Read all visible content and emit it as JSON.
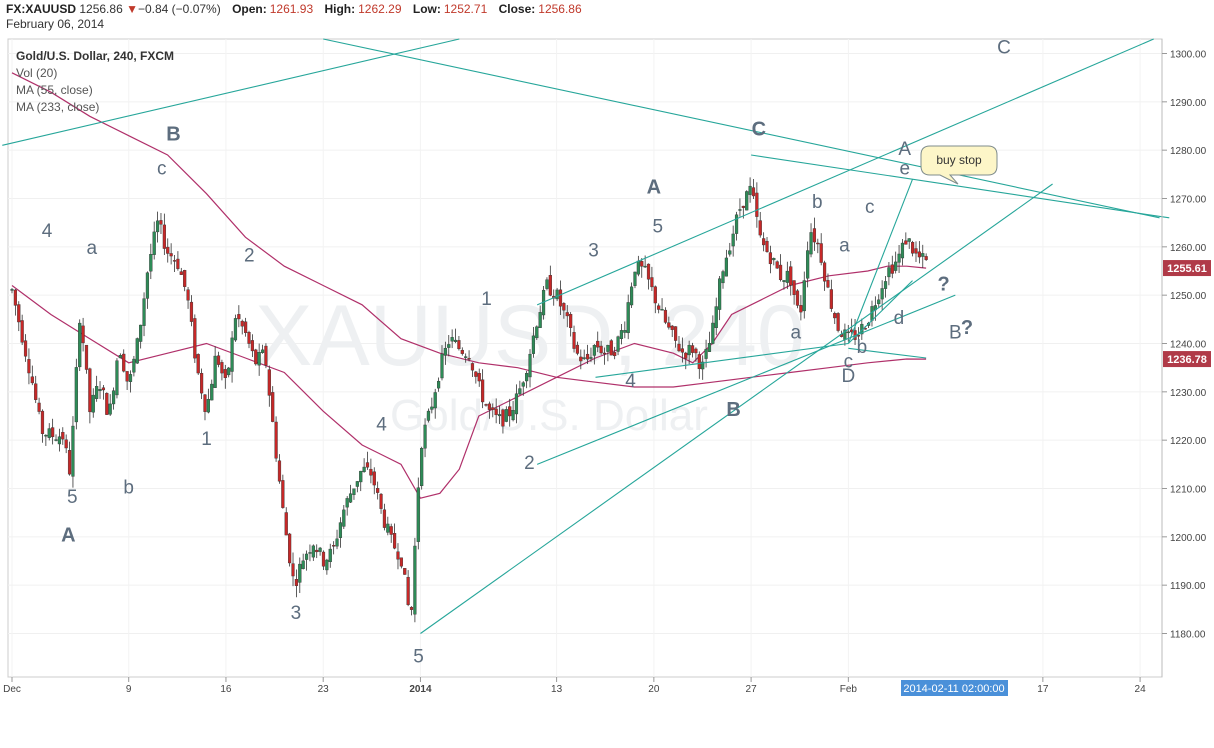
{
  "header": {
    "symbol": "FX:XAUUSD",
    "last": "1256.86",
    "change_arrow": "▼",
    "change": "−0.84 (−0.07%)",
    "open_label": "Open:",
    "open": "1261.93",
    "high_label": "High:",
    "high": "1262.29",
    "low_label": "Low:",
    "low": "1252.71",
    "close_label": "Close:",
    "close": "1256.86",
    "date": "February 06, 2014"
  },
  "legend": {
    "title": "Gold/U.S. Dollar, 240, FXCM",
    "vol": "Vol (20)",
    "ma55": "MA (55, close)",
    "ma233": "MA (233, close)"
  },
  "watermark": {
    "line1": "XAUUSD, 240",
    "line2": "Gold/U.S. Dollar"
  },
  "colors": {
    "up": "#2e8b57",
    "down": "#c62828",
    "ma": "#b0306a",
    "trend": "#26a69a",
    "label": "#5d6d7e",
    "price_tag": "#b03a48"
  },
  "callout": {
    "text": "buy stop"
  },
  "chart_data": {
    "type": "candlestick",
    "title": "Gold/U.S. Dollar, 240, FXCM",
    "y_ticks": [
      1180,
      1190,
      1200,
      1210,
      1220,
      1230,
      1240,
      1250,
      1260,
      1270,
      1280,
      1290,
      1300
    ],
    "y_tick_labels": [
      "1180.00",
      "1190.00",
      "1200.00",
      "1210.00",
      "1220.00",
      "1230.00",
      "1240.00",
      "1250.00",
      "1260.00",
      "1270.00",
      "1280.00",
      "1290.00",
      "1300.00"
    ],
    "ylim": [
      1171,
      1303
    ],
    "x_ticks": [
      {
        "label": "Dec",
        "t": 0
      },
      {
        "label": "9",
        "t": 6
      },
      {
        "label": "16",
        "t": 11
      },
      {
        "label": "23",
        "t": 16
      },
      {
        "label": "2014",
        "t": 21
      },
      {
        "label": "13",
        "t": 28
      },
      {
        "label": "20",
        "t": 33
      },
      {
        "label": "27",
        "t": 38
      },
      {
        "label": "Feb",
        "t": 43
      },
      {
        "label": "17",
        "t": 53
      },
      {
        "label": "24",
        "t": 58
      }
    ],
    "cursor_date": "2014-02-11 02:00:00",
    "price_tags": [
      {
        "value": 1255.61,
        "label": "1255.61"
      },
      {
        "value": 1236.78,
        "label": "1236.78"
      }
    ],
    "close_path": [
      [
        0,
        1251
      ],
      [
        1,
        1233
      ],
      [
        1.5,
        1222
      ],
      [
        2,
        1221
      ],
      [
        2.6,
        1221
      ],
      [
        3,
        1213
      ],
      [
        3.5,
        1247
      ],
      [
        4,
        1226
      ],
      [
        4.5,
        1232
      ],
      [
        5,
        1225
      ],
      [
        5.5,
        1240
      ],
      [
        6,
        1231
      ],
      [
        6.5,
        1241
      ],
      [
        7,
        1256
      ],
      [
        7.5,
        1265
      ],
      [
        8,
        1259
      ],
      [
        8.5,
        1257
      ],
      [
        9,
        1250
      ],
      [
        9.5,
        1235
      ],
      [
        10,
        1226
      ],
      [
        10.5,
        1238
      ],
      [
        11,
        1231
      ],
      [
        11.5,
        1246
      ],
      [
        12,
        1242
      ],
      [
        12.5,
        1236
      ],
      [
        13,
        1238
      ],
      [
        13.5,
        1220
      ],
      [
        14,
        1203
      ],
      [
        14.5,
        1190
      ],
      [
        15,
        1196
      ],
      [
        15.5,
        1199
      ],
      [
        16,
        1195
      ],
      [
        16.5,
        1197
      ],
      [
        17,
        1205
      ],
      [
        17.5,
        1210
      ],
      [
        18,
        1214
      ],
      [
        18.5,
        1213
      ],
      [
        19,
        1205
      ],
      [
        19.5,
        1199
      ],
      [
        20,
        1196
      ],
      [
        20.5,
        1182
      ],
      [
        21,
        1219
      ],
      [
        21.5,
        1226
      ],
      [
        22,
        1235
      ],
      [
        22.5,
        1241
      ],
      [
        23,
        1239
      ],
      [
        23.5,
        1238
      ],
      [
        24,
        1231
      ],
      [
        24.5,
        1226
      ],
      [
        25,
        1224
      ],
      [
        25.5,
        1225
      ],
      [
        26,
        1229
      ],
      [
        26.5,
        1236
      ],
      [
        27,
        1245
      ],
      [
        27.5,
        1252
      ],
      [
        28,
        1250
      ],
      [
        28.5,
        1245
      ],
      [
        29,
        1238
      ],
      [
        29.5,
        1236
      ],
      [
        30,
        1240
      ],
      [
        30.5,
        1238
      ],
      [
        31,
        1239
      ],
      [
        31.5,
        1244
      ],
      [
        32,
        1256
      ],
      [
        32.5,
        1255
      ],
      [
        33,
        1250
      ],
      [
        33.5,
        1245
      ],
      [
        34,
        1241
      ],
      [
        34.5,
        1238
      ],
      [
        35,
        1239
      ],
      [
        35.5,
        1235
      ],
      [
        36,
        1242
      ],
      [
        36.5,
        1255
      ],
      [
        37,
        1262
      ],
      [
        37.5,
        1269
      ],
      [
        38,
        1272
      ],
      [
        38.5,
        1261
      ],
      [
        39,
        1258
      ],
      [
        39.5,
        1254
      ],
      [
        40,
        1254
      ],
      [
        40.5,
        1245
      ],
      [
        41,
        1264
      ],
      [
        41.5,
        1260
      ],
      [
        42,
        1250
      ],
      [
        42.5,
        1243
      ],
      [
        43,
        1241
      ],
      [
        43.5,
        1242
      ],
      [
        44,
        1245
      ],
      [
        44.5,
        1250
      ],
      [
        45,
        1255
      ],
      [
        45.5,
        1257
      ],
      [
        46,
        1262
      ],
      [
        46.5,
        1258
      ],
      [
        47,
        1256.86
      ]
    ],
    "ma55_path": [
      [
        0,
        1252
      ],
      [
        2,
        1246
      ],
      [
        4,
        1241
      ],
      [
        6,
        1236
      ],
      [
        8,
        1238
      ],
      [
        10,
        1240
      ],
      [
        12,
        1237
      ],
      [
        14,
        1234
      ],
      [
        16,
        1226
      ],
      [
        18,
        1219
      ],
      [
        20,
        1215
      ],
      [
        21,
        1208
      ],
      [
        22,
        1209
      ],
      [
        23,
        1214
      ],
      [
        24,
        1225
      ],
      [
        26,
        1229
      ],
      [
        28,
        1233
      ],
      [
        30,
        1237
      ],
      [
        32,
        1240
      ],
      [
        34,
        1238
      ],
      [
        35,
        1236
      ],
      [
        36,
        1240
      ],
      [
        37,
        1246
      ],
      [
        38,
        1248
      ],
      [
        40,
        1252
      ],
      [
        42,
        1254
      ],
      [
        44,
        1255
      ],
      [
        45,
        1256
      ],
      [
        46,
        1256
      ],
      [
        47,
        1255.61
      ]
    ],
    "ma233_path": [
      [
        0,
        1296
      ],
      [
        2,
        1292
      ],
      [
        4,
        1287
      ],
      [
        6,
        1283
      ],
      [
        8,
        1279
      ],
      [
        10,
        1271
      ],
      [
        12,
        1262
      ],
      [
        14,
        1256
      ],
      [
        16,
        1252
      ],
      [
        18,
        1248
      ],
      [
        20,
        1241
      ],
      [
        22,
        1238
      ],
      [
        24,
        1236
      ],
      [
        26,
        1235
      ],
      [
        28,
        1233
      ],
      [
        30,
        1232
      ],
      [
        32,
        1231
      ],
      [
        34,
        1231
      ],
      [
        36,
        1232
      ],
      [
        38,
        1233
      ],
      [
        40,
        1234
      ],
      [
        42,
        1235
      ],
      [
        44,
        1236
      ],
      [
        46,
        1236.8
      ],
      [
        47,
        1236.78
      ]
    ],
    "trendlines": [
      [
        [
          -0.5,
          1281
        ],
        [
          23,
          1303
        ]
      ],
      [
        [
          16,
          1303
        ],
        [
          59,
          1266
        ]
      ],
      [
        [
          27,
          1248
        ],
        [
          58.7,
          1303
        ]
      ],
      [
        [
          38,
          1279
        ],
        [
          59.5,
          1266
        ]
      ],
      [
        [
          21,
          1180
        ],
        [
          53.5,
          1273
        ]
      ],
      [
        [
          27,
          1215
        ],
        [
          48.5,
          1250
        ]
      ],
      [
        [
          43,
          1240
        ],
        [
          46.3,
          1274
        ]
      ],
      [
        [
          43,
          1240
        ],
        [
          46.3,
          1253
        ]
      ],
      [
        [
          30,
          1233
        ],
        [
          43,
          1240
        ]
      ],
      [
        [
          43,
          1239
        ],
        [
          47,
          1237
        ]
      ]
    ],
    "wave_labels": [
      {
        "text": "4",
        "t": 1.8,
        "y": 1262,
        "bold": false
      },
      {
        "text": "a",
        "t": 4.1,
        "y": 1258.5,
        "bold": false
      },
      {
        "text": "5",
        "t": 3.1,
        "y": 1207,
        "bold": false
      },
      {
        "text": "A",
        "t": 2.9,
        "y": 1199,
        "bold": true
      },
      {
        "text": "b",
        "t": 6.0,
        "y": 1209,
        "bold": false
      },
      {
        "text": "B",
        "t": 8.3,
        "y": 1282,
        "bold": true
      },
      {
        "text": "c",
        "t": 7.7,
        "y": 1275,
        "bold": false
      },
      {
        "text": "2",
        "t": 12.2,
        "y": 1257,
        "bold": false
      },
      {
        "text": "1",
        "t": 10.0,
        "y": 1219,
        "bold": false
      },
      {
        "text": "3",
        "t": 14.6,
        "y": 1183,
        "bold": false
      },
      {
        "text": "4",
        "t": 19.0,
        "y": 1222,
        "bold": false
      },
      {
        "text": "5",
        "t": 20.9,
        "y": 1174,
        "bold": false
      },
      {
        "text": "1",
        "t": 24.4,
        "y": 1248,
        "bold": false
      },
      {
        "text": "2",
        "t": 26.6,
        "y": 1214,
        "bold": false
      },
      {
        "text": "3",
        "t": 29.9,
        "y": 1258,
        "bold": false
      },
      {
        "text": "4",
        "t": 31.8,
        "y": 1231,
        "bold": false
      },
      {
        "text": "A",
        "t": 33.0,
        "y": 1271,
        "bold": true
      },
      {
        "text": "5",
        "t": 33.2,
        "y": 1263,
        "bold": false
      },
      {
        "text": "B",
        "t": 37.1,
        "y": 1225,
        "bold": true
      },
      {
        "text": "C",
        "t": 38.4,
        "y": 1283,
        "bold": true
      },
      {
        "text": "b",
        "t": 41.4,
        "y": 1268,
        "bold": false
      },
      {
        "text": "a",
        "t": 40.3,
        "y": 1241,
        "bold": false
      },
      {
        "text": "a",
        "t": 42.8,
        "y": 1259,
        "bold": false
      },
      {
        "text": "c",
        "t": 44.1,
        "y": 1267,
        "bold": false
      },
      {
        "text": "b",
        "t": 43.7,
        "y": 1238,
        "bold": false
      },
      {
        "text": "c",
        "t": 43.0,
        "y": 1235,
        "bold": false
      },
      {
        "text": "D",
        "t": 43.0,
        "y": 1232,
        "bold": false
      },
      {
        "text": "d",
        "t": 45.6,
        "y": 1244,
        "bold": false
      },
      {
        "text": "A",
        "t": 45.9,
        "y": 1279,
        "bold": false
      },
      {
        "text": "e",
        "t": 45.9,
        "y": 1275,
        "bold": false
      },
      {
        "text": "?",
        "t": 47.9,
        "y": 1251,
        "bold": true
      },
      {
        "text": "B",
        "t": 48.5,
        "y": 1241,
        "bold": false
      },
      {
        "text": "?",
        "t": 49.1,
        "y": 1242,
        "bold": true
      },
      {
        "text": "C",
        "t": 51.0,
        "y": 1300,
        "bold": false
      }
    ]
  }
}
